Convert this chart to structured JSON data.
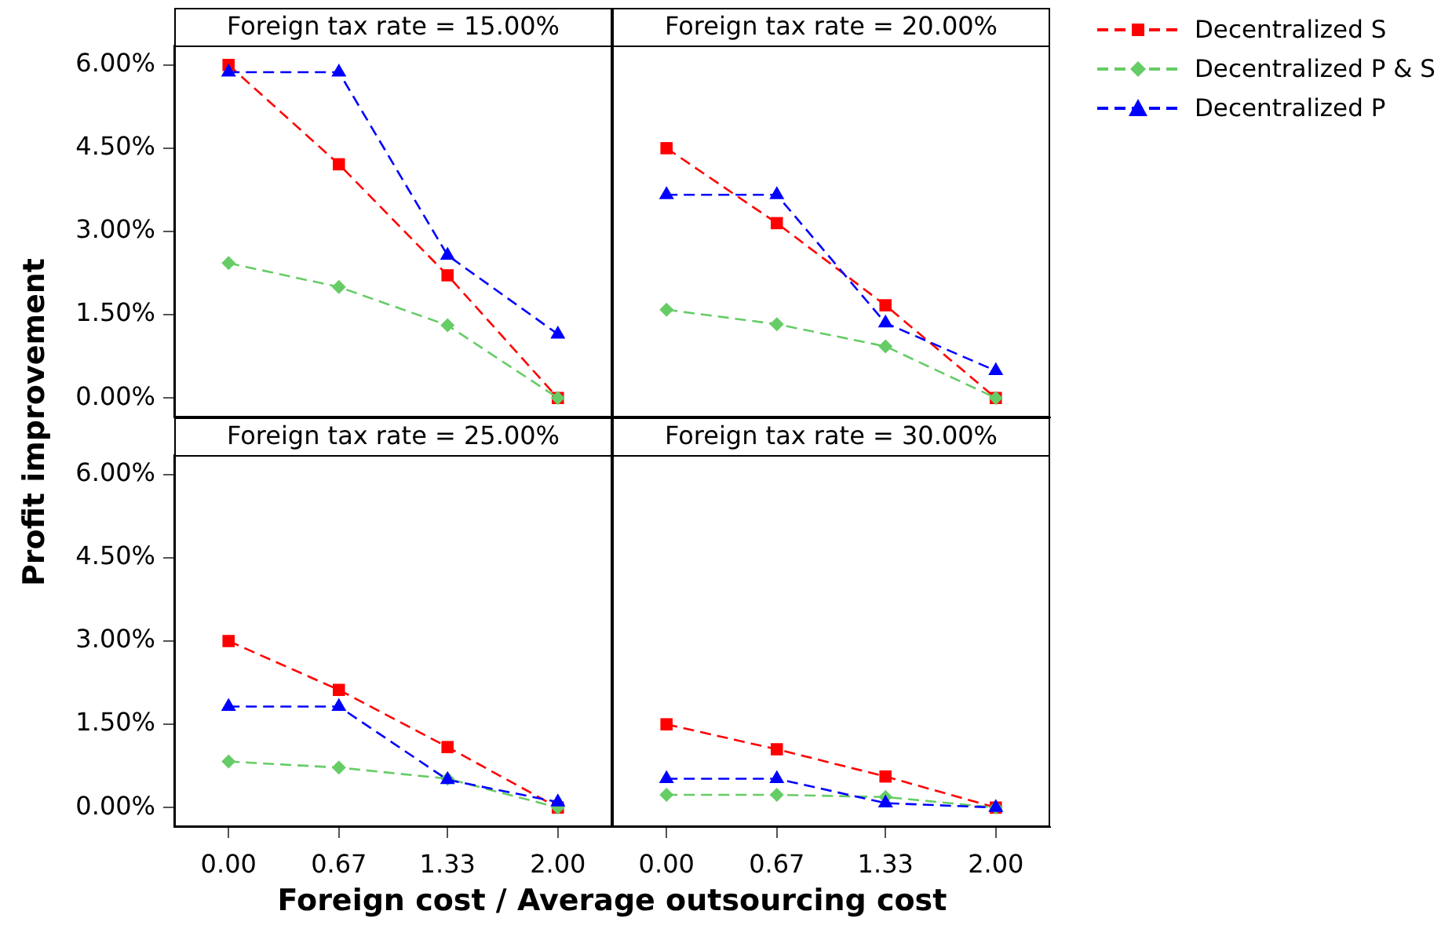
{
  "chart_data": [
    {
      "type": "line",
      "title": "Foreign tax rate = 15.00%",
      "x": [
        0,
        0.67,
        1.33,
        2
      ],
      "xlim": [
        -0.33,
        2.33
      ],
      "ylim": [
        -0.35,
        6.35
      ],
      "yticks": [
        {
          "value": 0,
          "label": "0.00%"
        },
        {
          "value": 1.5,
          "label": "1.50%"
        },
        {
          "value": 3,
          "label": "3.00%"
        },
        {
          "value": 4.5,
          "label": "4.50%"
        },
        {
          "value": 6,
          "label": "6.00%"
        }
      ],
      "tick_labels": "y",
      "series": [
        {
          "color": "#ff0000",
          "marker": "square",
          "line_style": "dashed",
          "values": [
            6.0,
            4.21,
            2.21,
            0
          ]
        },
        {
          "color": "#66cc66",
          "marker": "diamond",
          "line_style": "dashed",
          "values": [
            2.43,
            2.0,
            1.31,
            0
          ]
        },
        {
          "color": "#0000ff",
          "marker": "triangle",
          "line_style": "dashed",
          "values": [
            5.87,
            5.87,
            2.57,
            1.15
          ]
        }
      ]
    },
    {
      "type": "line",
      "title": "Foreign tax rate = 20.00%",
      "x": [
        0,
        0.67,
        1.33,
        2
      ],
      "xlim": [
        -0.33,
        2.33
      ],
      "ylim": [
        -0.35,
        6.35
      ],
      "tick_labels": false,
      "legend": "right",
      "series": [
        {
          "name": "Decentralized S",
          "color": "#ff0000",
          "marker": "square",
          "line_style": "dashed",
          "values": [
            4.5,
            3.15,
            1.67,
            0
          ]
        },
        {
          "name": "Decentralized P & S",
          "color": "#66cc66",
          "marker": "diamond",
          "line_style": "dashed",
          "values": [
            1.59,
            1.33,
            0.93,
            0
          ]
        },
        {
          "name": "Decentralized P",
          "color": "#0000ff",
          "marker": "triangle",
          "line_style": "dashed",
          "values": [
            3.66,
            3.66,
            1.35,
            0.49
          ]
        }
      ]
    },
    {
      "type": "line",
      "title": "Foreign tax rate = 25.00%",
      "xlabel": "Foreign cost / Average outsourcing cost",
      "ylabel": "Profit improvement",
      "x": [
        0,
        0.67,
        1.33,
        2
      ],
      "xlim": [
        -0.33,
        2.33
      ],
      "xticks": [
        {
          "value": 0,
          "label": "0.00"
        },
        {
          "value": 0.67,
          "label": "0.67"
        },
        {
          "value": 1.33,
          "label": "1.33"
        },
        {
          "value": 2,
          "label": "2.00"
        }
      ],
      "ylim": [
        -0.35,
        6.35
      ],
      "yticks": [
        {
          "value": 0,
          "label": "0.00%"
        },
        {
          "value": 1.5,
          "label": "1.50%"
        },
        {
          "value": 3,
          "label": "3.00%"
        },
        {
          "value": 4.5,
          "label": "4.50%"
        },
        {
          "value": 6,
          "label": "6.00%"
        }
      ],
      "series": [
        {
          "color": "#ff0000",
          "marker": "square",
          "line_style": "dashed",
          "values": [
            3.0,
            2.12,
            1.09,
            0
          ]
        },
        {
          "color": "#66cc66",
          "marker": "diamond",
          "line_style": "dashed",
          "values": [
            0.83,
            0.72,
            0.52,
            0
          ]
        },
        {
          "color": "#0000ff",
          "marker": "triangle",
          "line_style": "dashed",
          "values": [
            1.82,
            1.82,
            0.5,
            0.1
          ]
        }
      ]
    },
    {
      "type": "line",
      "title": "Foreign tax rate = 30.00%",
      "x": [
        0,
        0.67,
        1.33,
        2
      ],
      "xlim": [
        -0.33,
        2.33
      ],
      "xticks": [
        {
          "value": 0,
          "label": "0.00"
        },
        {
          "value": 0.67,
          "label": "0.67"
        },
        {
          "value": 1.33,
          "label": "1.33"
        },
        {
          "value": 2,
          "label": "2.00"
        }
      ],
      "ylim": [
        -0.35,
        6.35
      ],
      "tick_labels": "x",
      "series": [
        {
          "color": "#ff0000",
          "marker": "square",
          "line_style": "dashed",
          "values": [
            1.5,
            1.05,
            0.56,
            0
          ]
        },
        {
          "color": "#66cc66",
          "marker": "diamond",
          "line_style": "dashed",
          "values": [
            0.23,
            0.23,
            0.19,
            0
          ]
        },
        {
          "color": "#0000ff",
          "marker": "triangle",
          "line_style": "dashed",
          "values": [
            0.52,
            0.52,
            0.08,
            0
          ]
        }
      ]
    }
  ]
}
